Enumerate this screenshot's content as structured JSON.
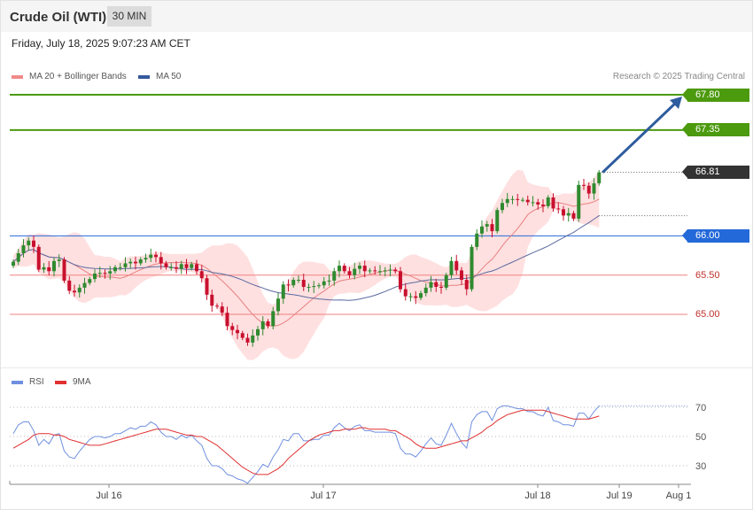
{
  "header": {
    "instrument": "Crude Oil (WTI)",
    "timeframe": "30 MIN"
  },
  "datetime": "Friday, July 18, 2025 9:07:23 AM CET",
  "legend": {
    "bb_label": "MA 20 + Bollinger Bands",
    "ma50_label": "MA 50",
    "credit": "Research © 2025 Trading Central"
  },
  "rsi_legend": {
    "rsi_label": "RSI",
    "ma_label": "9MA"
  },
  "colors": {
    "up": "#2f8a2f",
    "down": "#c8102e",
    "resistance": "#4c9a0e",
    "support": "#f08080",
    "pivot": "#2469d9",
    "current": "#333333",
    "bollinger": "#ffd6d6",
    "ma20": "#e88080",
    "ma50": "#5a6aa0",
    "rsi": "#6f8fe0",
    "rsi_ma": "#e03030",
    "arrow": "#2e5c9e"
  },
  "chart_data": {
    "type": "candlestick",
    "price_axis": {
      "min": 64.5,
      "max": 67.9
    },
    "x_ticks": [
      "Jul 16",
      "Jul 17",
      "Jul 18",
      "Jul 19",
      "Aug 1"
    ],
    "levels": [
      {
        "label": "67.80",
        "value": 67.8,
        "kind": "resistance"
      },
      {
        "label": "67.35",
        "value": 67.35,
        "kind": "resistance"
      },
      {
        "label": "66.81",
        "value": 66.81,
        "kind": "current"
      },
      {
        "label": "66.00",
        "value": 66.0,
        "kind": "pivot"
      },
      {
        "label": "65.50",
        "value": 65.5,
        "kind": "support"
      },
      {
        "label": "65.00",
        "value": 65.0,
        "kind": "support"
      }
    ],
    "close": [
      65.67,
      65.78,
      65.88,
      65.94,
      65.86,
      65.57,
      65.6,
      65.55,
      65.68,
      65.7,
      65.43,
      65.3,
      65.28,
      65.34,
      65.4,
      65.45,
      65.52,
      65.53,
      65.52,
      65.55,
      65.6,
      65.6,
      65.65,
      65.67,
      65.65,
      65.7,
      65.72,
      65.76,
      65.73,
      65.65,
      65.6,
      65.6,
      65.58,
      65.64,
      65.59,
      65.64,
      65.55,
      65.46,
      65.25,
      65.11,
      65.1,
      65.02,
      64.85,
      64.8,
      64.76,
      64.7,
      64.64,
      64.73,
      64.81,
      64.91,
      64.85,
      65.04,
      65.2,
      65.38,
      65.37,
      65.44,
      65.44,
      65.35,
      65.35,
      65.36,
      65.37,
      65.42,
      65.43,
      65.55,
      65.62,
      65.55,
      65.5,
      65.58,
      65.62,
      65.55,
      65.56,
      65.55,
      65.55,
      65.56,
      65.57,
      65.55,
      65.32,
      65.23,
      65.23,
      65.21,
      65.27,
      65.34,
      65.41,
      65.35,
      65.34,
      65.5,
      65.68,
      65.56,
      65.44,
      65.32,
      65.86,
      66.03,
      66.12,
      66.15,
      66.06,
      66.33,
      66.42,
      66.47,
      66.47,
      66.46,
      66.46,
      66.43,
      66.43,
      66.4,
      66.38,
      66.49,
      66.35,
      66.34,
      66.26,
      66.29,
      66.22,
      66.65,
      66.64,
      66.54,
      66.67,
      66.81
    ],
    "rsi_axis": {
      "min": 20,
      "max": 80,
      "ticks": [
        30,
        50,
        70
      ]
    },
    "rsi": [
      52,
      58,
      60,
      60,
      54,
      44,
      48,
      45,
      51,
      52,
      40,
      36,
      35,
      40,
      44,
      48,
      50,
      50,
      49,
      50,
      52,
      52,
      54,
      56,
      55,
      57,
      57,
      60,
      58,
      53,
      50,
      50,
      48,
      51,
      49,
      51,
      47,
      44,
      35,
      30,
      30,
      28,
      24,
      23,
      21,
      20,
      18,
      22,
      26,
      31,
      29,
      36,
      41,
      48,
      47,
      52,
      52,
      47,
      47,
      48,
      48,
      51,
      51,
      56,
      59,
      56,
      54,
      57,
      58,
      54,
      54,
      53,
      53,
      53,
      53,
      52,
      42,
      38,
      38,
      36,
      40,
      45,
      49,
      45,
      44,
      51,
      59,
      52,
      46,
      42,
      60,
      65,
      67,
      67,
      61,
      69,
      71,
      71,
      70,
      69,
      69,
      67,
      67,
      65,
      64,
      70,
      61,
      60,
      58,
      58,
      57,
      66,
      66,
      62,
      67,
      71
    ],
    "rsi_ma": [
      42,
      44,
      46,
      48,
      51,
      52,
      52,
      52,
      51,
      51,
      50,
      48,
      47,
      46,
      45,
      44,
      44,
      44,
      45,
      46,
      47,
      48,
      49,
      50,
      51,
      52,
      53,
      54,
      55,
      55,
      55,
      54,
      53,
      52,
      51,
      51,
      50,
      50,
      48,
      46,
      44,
      41,
      38,
      35,
      32,
      29,
      27,
      25,
      24,
      24,
      24,
      26,
      28,
      31,
      35,
      38,
      41,
      44,
      47,
      49,
      51,
      52,
      53,
      54,
      54,
      55,
      55,
      55,
      56,
      56,
      55,
      55,
      55,
      55,
      54,
      54,
      52,
      50,
      48,
      45,
      43,
      42,
      42,
      42,
      43,
      44,
      45,
      46,
      47,
      47,
      49,
      51,
      53,
      56,
      58,
      61,
      63,
      65,
      66,
      67,
      68,
      68,
      68,
      68,
      68,
      67,
      66,
      65,
      64,
      63,
      62,
      62,
      62,
      62,
      63,
      64
    ]
  }
}
